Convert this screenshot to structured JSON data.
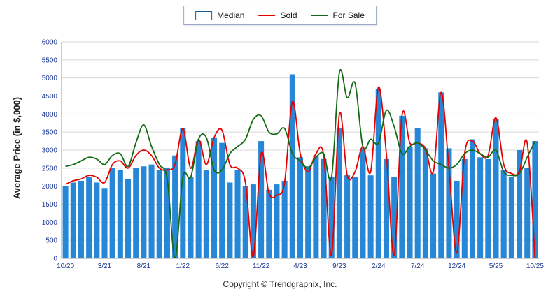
{
  "legend": {
    "items": [
      {
        "label": "Median",
        "type": "bar",
        "color": "#2787d7"
      },
      {
        "label": "Sold",
        "type": "line",
        "color": "#e60000"
      },
      {
        "label": "For Sale",
        "type": "line",
        "color": "#156b15"
      }
    ]
  },
  "footer": {
    "copyright": "Copyright © Trendgraphix, Inc."
  },
  "chart_data": {
    "type": "bar",
    "title": "",
    "xlabel": "",
    "ylabel": "Average Price (in $,000)",
    "ylim": [
      0,
      6000
    ],
    "ytick_step": 500,
    "grid": true,
    "legend_position": "top",
    "x_tick_every": 5,
    "x_tick_labels": [
      "10/20",
      "3/21",
      "8/21",
      "1/22",
      "6/22",
      "11/22",
      "4/23",
      "9/23",
      "2/24",
      "7/24",
      "12/24",
      "5/25",
      "10/25"
    ],
    "categories": [
      "10/20",
      "11/20",
      "12/20",
      "1/21",
      "2/21",
      "3/21",
      "4/21",
      "5/21",
      "6/21",
      "7/21",
      "8/21",
      "9/21",
      "10/21",
      "11/21",
      "12/21",
      "1/22",
      "2/22",
      "3/22",
      "4/22",
      "5/22",
      "6/22",
      "7/22",
      "8/22",
      "9/22",
      "10/22",
      "11/22",
      "12/22",
      "1/23",
      "2/23",
      "3/23",
      "4/23",
      "5/23",
      "6/23",
      "7/23",
      "8/23",
      "9/23",
      "10/23",
      "11/23",
      "12/23",
      "1/24",
      "2/24",
      "3/24",
      "4/24",
      "5/24",
      "6/24",
      "7/24",
      "8/24",
      "9/24",
      "10/24",
      "11/24",
      "12/24",
      "1/25",
      "2/25",
      "3/25",
      "4/25",
      "5/25",
      "6/25",
      "7/25",
      "8/25",
      "9/25",
      "10/25"
    ],
    "series": [
      {
        "name": "Median",
        "type": "bar",
        "color": "#2787d7",
        "values": [
          2000,
          2100,
          2150,
          2250,
          2100,
          1950,
          2500,
          2450,
          2200,
          2500,
          2550,
          2600,
          2450,
          2500,
          2850,
          3600,
          2250,
          3250,
          2450,
          3350,
          3200,
          2100,
          2450,
          2000,
          2050,
          3250,
          1900,
          2050,
          2150,
          5100,
          2800,
          2550,
          2850,
          2750,
          2250,
          3600,
          2300,
          2250,
          3050,
          2300,
          4700,
          2750,
          2250,
          3950,
          3100,
          3600,
          3050,
          2350,
          4600,
          3050,
          2150,
          2750,
          3300,
          2800,
          2750,
          3850,
          2450,
          2250,
          3000,
          2500,
          3250
        ]
      },
      {
        "name": "Sold",
        "type": "line",
        "color": "#e60000",
        "values": [
          2050,
          2150,
          2200,
          2300,
          2250,
          2100,
          2600,
          2700,
          2500,
          2850,
          3000,
          2850,
          2500,
          2450,
          2600,
          3600,
          2500,
          3300,
          2600,
          3350,
          3550,
          2600,
          2500,
          2100,
          50,
          2900,
          1800,
          1750,
          2100,
          4350,
          2900,
          2400,
          2900,
          2850,
          100,
          4000,
          2300,
          2400,
          3100,
          2400,
          4750,
          2900,
          100,
          3950,
          3200,
          3200,
          3050,
          2400,
          4600,
          2500,
          150,
          2900,
          3250,
          2900,
          2850,
          3900,
          2600,
          2350,
          2400,
          3200,
          0
        ]
      },
      {
        "name": "For Sale",
        "type": "line",
        "color": "#156b15",
        "values": [
          2550,
          2600,
          2700,
          2800,
          2750,
          2600,
          2850,
          2900,
          2550,
          3200,
          3700,
          3100,
          2600,
          2200,
          0,
          2250,
          2250,
          3300,
          3350,
          2450,
          2450,
          2900,
          3100,
          3300,
          3850,
          3950,
          3500,
          3450,
          3600,
          2900,
          2700,
          2500,
          2800,
          2900,
          2250,
          5150,
          4450,
          4850,
          3100,
          3300,
          3200,
          4100,
          3650,
          2900,
          3100,
          3200,
          3000,
          2700,
          2600,
          2500,
          2600,
          2900,
          3000,
          2900,
          2800,
          3000,
          2400,
          2300,
          2350,
          2800,
          3250
        ]
      }
    ]
  }
}
